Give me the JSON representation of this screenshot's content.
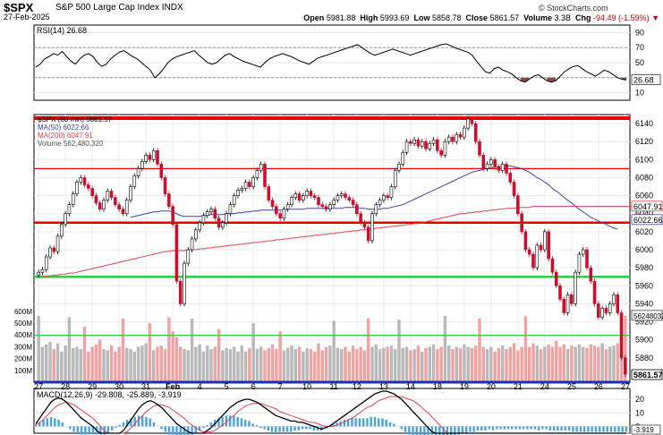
{
  "header": {
    "ticker": "$SPX",
    "name": "S&P 500 Large Cap Index",
    "exchange": "INDX",
    "date": "27-Feb-2025",
    "brand": "© StockCharts.com",
    "open_label": "Open",
    "open": "5981.88",
    "high_label": "High",
    "high": "5993.69",
    "low_label": "Low",
    "low": "5858.78",
    "close_label": "Close",
    "close": "5861.57",
    "volume_label": "Volume",
    "volume": "3.3B",
    "chg_label": "Chg",
    "chg": "-94.49 (-1.59%)",
    "chg_arrow": "▼"
  },
  "chart_data": [
    {
      "type": "line",
      "panel": "rsi",
      "legend": "RSI(14) 26.68",
      "ylim": [
        0,
        100
      ],
      "yticks": [
        10,
        30,
        50,
        70,
        90
      ],
      "reference_lines": [
        30,
        70
      ],
      "last_value_label": "26.68",
      "values": [
        44,
        48,
        55,
        58,
        62,
        60,
        65,
        58,
        52,
        48,
        55,
        60,
        62,
        58,
        50,
        45,
        48,
        55,
        60,
        64,
        66,
        62,
        58,
        55,
        50,
        45,
        40,
        30,
        35,
        42,
        50,
        55,
        58,
        60,
        62,
        64,
        66,
        60,
        55,
        50,
        48,
        50,
        55,
        60,
        62,
        58,
        55,
        52,
        50,
        48,
        46,
        44,
        50,
        55,
        58,
        60,
        62,
        60,
        58,
        55,
        52,
        50,
        48,
        52,
        56,
        58,
        60,
        62,
        64,
        66,
        68,
        70,
        72,
        74,
        70,
        66,
        62,
        60,
        62,
        64,
        66,
        68,
        66,
        64,
        62,
        60,
        62,
        64,
        66,
        68,
        70,
        72,
        74,
        75,
        73,
        70,
        68,
        66,
        64,
        60,
        52,
        45,
        38,
        36,
        42,
        44,
        40,
        38,
        35,
        30,
        26,
        24,
        28,
        32,
        34,
        30,
        26,
        24,
        26,
        32,
        38,
        42,
        45,
        46,
        42,
        38,
        35,
        32,
        36,
        40,
        38,
        34,
        30,
        28,
        27
      ],
      "colors": {
        "line": "#000000",
        "overbought_fill": "#7fb3d5",
        "oversold_fill": "#8b4a4a"
      }
    },
    {
      "type": "candlestick",
      "panel": "price",
      "legend": [
        "$SPX (60 min) 5861.57",
        "MA(50) 6022.66",
        "MA(200) 6047.91",
        "Volume 562,480,320"
      ],
      "y_ticks": [
        5880,
        5900,
        5920,
        5940,
        5960,
        5980,
        6000,
        6020,
        6040,
        6060,
        6080,
        6100,
        6120,
        6140
      ],
      "ylim": [
        5853,
        6150
      ],
      "x_tick_labels": [
        "27",
        "28",
        "29",
        "30",
        "31",
        "Feb",
        "4",
        "5",
        "6",
        "7",
        "10",
        "11",
        "12",
        "13",
        "14",
        "18",
        "19",
        "20",
        "21",
        "24",
        "25",
        "26",
        "27"
      ],
      "closes": [
        5975,
        5978,
        5992,
        6002,
        5998,
        6015,
        6028,
        6040,
        6050,
        6062,
        6075,
        6080,
        6072,
        6068,
        6060,
        6052,
        6045,
        6055,
        6065,
        6058,
        6050,
        6045,
        6040,
        6055,
        6070,
        6082,
        6090,
        6098,
        6105,
        6100,
        6110,
        6095,
        6080,
        6062,
        6048,
        6028,
        5965,
        5940,
        5985,
        6000,
        6012,
        6022,
        6030,
        6038,
        6042,
        6045,
        6035,
        6025,
        6030,
        6040,
        6050,
        6060,
        6066,
        6068,
        6075,
        6070,
        6080,
        6088,
        6095,
        6070,
        6055,
        6048,
        6040,
        6035,
        6045,
        6050,
        6058,
        6062,
        6055,
        6060,
        6065,
        6060,
        6058,
        6050,
        6048,
        6045,
        6050,
        6055,
        6060,
        6062,
        6058,
        6055,
        6050,
        6040,
        6030,
        6025,
        6010,
        6040,
        6050,
        6055,
        6060,
        6058,
        6070,
        6088,
        6095,
        6108,
        6120,
        6118,
        6122,
        6115,
        6120,
        6112,
        6118,
        6122,
        6110,
        6105,
        6120,
        6125,
        6120,
        6128,
        6125,
        6135,
        6145,
        6140,
        6120,
        6105,
        6090,
        6095,
        6100,
        6092,
        6088,
        6095,
        6085,
        6075,
        6060,
        6040,
        6020,
        6000,
        5995,
        5980,
        6005,
        6000,
        6020,
        5990,
        5975,
        5960,
        5945,
        5930,
        5950,
        5940,
        5975,
        5995,
        6000,
        5980,
        5965,
        5940,
        5925,
        5935,
        5930,
        5940,
        5950,
        5930,
        5880,
        5862
      ],
      "volume": {
        "ylim": [
          0,
          690
        ],
        "yticks": [
          100,
          200,
          300,
          400,
          500,
          600
        ],
        "ytick_labels": [
          "100M",
          "200M",
          "300M",
          "400M",
          "500M",
          "600M"
        ],
        "last_value_label": "562480320",
        "series_note": "hourly volume, millions; one value per candle",
        "values": [
          560,
          300,
          320,
          340,
          280,
          330,
          260,
          310,
          550,
          290,
          300,
          280,
          470,
          260,
          300,
          320,
          360,
          280,
          270,
          310,
          260,
          300,
          540,
          290,
          280,
          260,
          300,
          310,
          330,
          500,
          270,
          300,
          310,
          280,
          550,
          430,
          380,
          300,
          280,
          270,
          540,
          300,
          320,
          260,
          310,
          280,
          300,
          450,
          270,
          290,
          280,
          300,
          260,
          310,
          260,
          290,
          500,
          280,
          300,
          270,
          290,
          320,
          280,
          430,
          270,
          290,
          310,
          280,
          300,
          260,
          290,
          280,
          260,
          330,
          270,
          300,
          310,
          520,
          290,
          280,
          300,
          260,
          310,
          280,
          300,
          270,
          540,
          300,
          320,
          280,
          290,
          300,
          310,
          280,
          530,
          290,
          300,
          270,
          280,
          310,
          260,
          290,
          300,
          320,
          280,
          300,
          560,
          310,
          280,
          300,
          290,
          320,
          300,
          290,
          310,
          540,
          300,
          280,
          300,
          260,
          290,
          310,
          280,
          300,
          330,
          270,
          300,
          560,
          300,
          330,
          310,
          280,
          300,
          320,
          300,
          350,
          300,
          320,
          280,
          310,
          300,
          320,
          300,
          290,
          320,
          310,
          300,
          330,
          280,
          300,
          310,
          330,
          300,
          562
        ]
      },
      "horizontal_lines": [
        {
          "value": 6146,
          "color": "#e60000",
          "weight": "thick"
        },
        {
          "value": 6090,
          "color": "#e60000",
          "weight": "thin"
        },
        {
          "value": 6030,
          "color": "#e60000",
          "weight": "medium"
        },
        {
          "value": 5970,
          "color": "#2ecc40",
          "weight": "medium"
        },
        {
          "value": 5905,
          "color": "#2ecc40",
          "weight": "thin"
        }
      ],
      "moving_averages": [
        {
          "name": "MA(50)",
          "label": "6022.66",
          "color": "#3b47a8",
          "values": [
            null,
            null,
            null,
            null,
            null,
            null,
            null,
            null,
            null,
            null,
            null,
            null,
            null,
            null,
            null,
            null,
            null,
            null,
            null,
            null,
            null,
            null,
            null,
            null,
            6036,
            6037,
            6038,
            6039,
            6040,
            6041,
            6042,
            6042,
            6043,
            6043,
            6043,
            6042,
            6040,
            6038,
            6037,
            6037,
            6037,
            6037,
            6037,
            6038,
            6038,
            6039,
            6039,
            6039,
            6039,
            6040,
            6040,
            6040,
            6041,
            6041,
            6042,
            6042,
            6043,
            6043,
            6044,
            6044,
            6044,
            6044,
            6044,
            6044,
            6044,
            6045,
            6045,
            6045,
            6045,
            6045,
            6046,
            6046,
            6046,
            6046,
            6046,
            6046,
            6046,
            6046,
            6046,
            6046,
            6047,
            6047,
            6047,
            6047,
            6046,
            6046,
            6045,
            6045,
            6045,
            6045,
            6046,
            6046,
            6047,
            6048,
            6049,
            6050,
            6052,
            6054,
            6056,
            6058,
            6060,
            6062,
            6064,
            6066,
            6068,
            6070,
            6072,
            6074,
            6076,
            6078,
            6080,
            6082,
            6084,
            6086,
            6087,
            6088,
            6089,
            6090,
            6091,
            6092,
            6092,
            6093,
            6093,
            6093,
            6092,
            6091,
            6090,
            6088,
            6086,
            6083,
            6080,
            6078,
            6075,
            6072,
            6068,
            6065,
            6062,
            6058,
            6055,
            6052,
            6048,
            6045,
            6042,
            6039,
            6036,
            6034,
            6032,
            6030,
            6028,
            6026,
            6024,
            6023
          ]
        },
        {
          "name": "MA(200)",
          "label": "6047.91",
          "color": "#e04050",
          "values": [
            5970,
            5970,
            5971,
            5971,
            5972,
            5972,
            5973,
            5973,
            5974,
            5974,
            5975,
            5976,
            5977,
            5978,
            5979,
            5980,
            5981,
            5982,
            5983,
            5984,
            5985,
            5986,
            5987,
            5988,
            5989,
            5990,
            5991,
            5992,
            5993,
            5994,
            5995,
            5996,
            5997,
            5998,
            5998,
            5999,
            5999,
            5999,
            5999,
            6000,
            6000,
            6000,
            6001,
            6001,
            6002,
            6002,
            6003,
            6003,
            6004,
            6004,
            6005,
            6005,
            6006,
            6006,
            6007,
            6007,
            6008,
            6008,
            6009,
            6009,
            6010,
            6010,
            6011,
            6011,
            6012,
            6012,
            6013,
            6013,
            6014,
            6014,
            6015,
            6015,
            6016,
            6016,
            6017,
            6017,
            6018,
            6018,
            6019,
            6019,
            6020,
            6020,
            6021,
            6021,
            6022,
            6022,
            6023,
            6023,
            6024,
            6024,
            6025,
            6025,
            6026,
            6026,
            6027,
            6027,
            6028,
            6028,
            6029,
            6029,
            6030,
            6031,
            6032,
            6033,
            6034,
            6035,
            6036,
            6037,
            6038,
            6039,
            6040,
            6040,
            6041,
            6041,
            6042,
            6042,
            6043,
            6043,
            6044,
            6044,
            6045,
            6045,
            6046,
            6046,
            6046,
            6047,
            6047,
            6047,
            6047,
            6048,
            6048,
            6048,
            6048,
            6048,
            6048,
            6048,
            6048,
            6048,
            6048,
            6048,
            6048,
            6048,
            6048,
            6048,
            6048,
            6048,
            6048,
            6048,
            6048,
            6048,
            6048,
            6048,
            6048,
            6048,
            6048,
            6048
          ]
        }
      ],
      "price_labels": {
        "ma200": "6047.91",
        "ma50": "6022.66",
        "last_close": "5861.57"
      },
      "colors": {
        "up": "#ffffff",
        "down": "#c8102e",
        "up_outline": "#000000",
        "vol_up": "#b9b9b9",
        "vol_down": "#f0a3a3"
      }
    },
    {
      "type": "line",
      "panel": "macd",
      "legend": "MACD(12,26,9) -29.808, -25.889, -3.919",
      "ylim": [
        -5,
        28
      ],
      "yticks": [
        0,
        10,
        20
      ],
      "last_value_label": "-3.919",
      "macd": [
        2,
        6,
        10,
        14,
        18,
        20,
        21,
        20,
        18,
        15,
        12,
        9,
        6,
        4,
        2,
        0,
        -3,
        -6,
        -9,
        -11,
        -10,
        -8,
        -6,
        -3,
        1,
        5,
        9,
        13,
        16,
        18,
        19,
        18,
        16,
        14,
        11,
        8,
        5,
        2,
        0,
        -2,
        -4,
        -5,
        -6,
        -6,
        -5,
        -3,
        -1,
        2,
        5,
        8,
        11,
        14,
        16,
        18,
        19,
        20,
        20,
        19,
        18,
        16,
        14,
        12,
        10,
        8,
        7,
        6,
        5,
        4,
        4,
        3,
        3,
        2,
        1,
        0,
        -1,
        -2,
        -1,
        0,
        2,
        4,
        6,
        8,
        10,
        12,
        14,
        16,
        18,
        20,
        22,
        24,
        25,
        26,
        26,
        25,
        24,
        22,
        20,
        17,
        14,
        11,
        8,
        5,
        2,
        -1,
        -4,
        -7,
        -10,
        -12,
        -14,
        -16,
        -17,
        -18,
        -19,
        -20,
        -20,
        -21,
        -21,
        -22,
        -22,
        -22,
        -23,
        -23,
        -23,
        -24,
        -24,
        -24,
        -25,
        -25,
        -25,
        -26,
        -26,
        -26,
        -27,
        -27,
        -27,
        -28,
        -28,
        -28,
        -29,
        -29,
        -29,
        -30,
        -30,
        -30,
        -30,
        -30,
        -30,
        -30,
        -30,
        -30,
        -30,
        -30,
        -30,
        -30,
        -30,
        -30
      ],
      "signal": [
        1,
        3,
        5,
        8,
        11,
        14,
        16,
        17,
        18,
        17,
        16,
        14,
        12,
        10,
        8,
        6,
        3,
        0,
        -3,
        -6,
        -7,
        -7,
        -7,
        -6,
        -4,
        -1,
        2,
        5,
        8,
        11,
        13,
        15,
        16,
        16,
        15,
        14,
        12,
        10,
        8,
        6,
        3,
        1,
        -1,
        -3,
        -4,
        -4,
        -4,
        -3,
        -1,
        1,
        3,
        6,
        8,
        11,
        13,
        15,
        16,
        17,
        17,
        17,
        16,
        15,
        14,
        13,
        11,
        10,
        9,
        8,
        7,
        6,
        5,
        4,
        3,
        3,
        2,
        1,
        0,
        0,
        0,
        1,
        2,
        3,
        5,
        6,
        8,
        10,
        12,
        14,
        15,
        17,
        19,
        20,
        21,
        22,
        22,
        22,
        22,
        21,
        20,
        19,
        17,
        15,
        12,
        10,
        7,
        4,
        1,
        -2,
        -5,
        -8,
        -10,
        -12,
        -14,
        -15,
        -16,
        -17,
        -18,
        -19,
        -19,
        -20,
        -20,
        -21,
        -21,
        -22,
        -22,
        -22,
        -23,
        -23,
        -23,
        -24,
        -24,
        -24,
        -24,
        -25,
        -25,
        -25,
        -25,
        -25,
        -26,
        -26,
        -26,
        -26,
        -26,
        -26,
        -26,
        -26,
        -26,
        -26,
        -26,
        -26,
        -26,
        -26,
        -26,
        -26,
        -26,
        -26,
        -26
      ],
      "colors": {
        "macd": "#000000",
        "signal": "#e04050",
        "histogram": "#4aa3df"
      }
    }
  ]
}
